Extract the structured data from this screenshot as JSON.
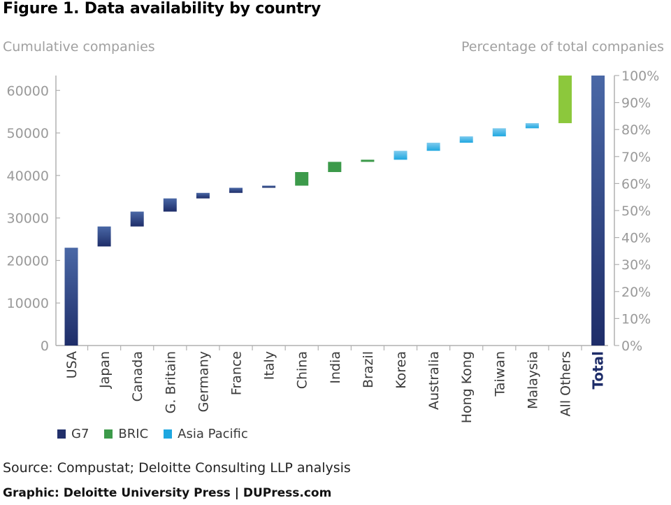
{
  "title": "Figure 1. Data availability by country",
  "source": "Source: Compustat; Deloitte Consulting LLP analysis",
  "credit": "Graphic: Deloitte University Press  |  DUPress.com",
  "colors": {
    "g7_top": "#4a68a6",
    "g7_bottom": "#1e2d69",
    "bric": "#3c9a4a",
    "asia_top": "#7fcbee",
    "asia_bottom": "#1ea7e0",
    "others": "#8cc83c",
    "axis": "#b0b0b0",
    "tick_text": "#9a9a9a"
  },
  "legend": [
    {
      "label": "G7",
      "color": "#22306b"
    },
    {
      "label": "BRIC",
      "color": "#3c9a4a"
    },
    {
      "label": "Asia Pacific",
      "color": "#1ea7e0"
    }
  ],
  "chart_data": {
    "type": "bar",
    "subtype": "waterfall",
    "title": "Figure 1. Data availability by country",
    "ylabel_left": "Cumulative companies",
    "ylabel_right": "Percentage of total companies",
    "ylim": [
      0,
      63500
    ],
    "y_ticks": [
      0,
      10000,
      20000,
      30000,
      40000,
      50000,
      60000
    ],
    "y_ticks_right": [
      "0%",
      "10%",
      "20%",
      "30%",
      "40%",
      "50%",
      "60%",
      "70%",
      "80%",
      "90%",
      "100%"
    ],
    "grid": false,
    "legend_position": "bottom-left",
    "categories": [
      "USA",
      "Japan",
      "Canada",
      "G. Britain",
      "Germany",
      "France",
      "Italy",
      "China",
      "India",
      "Brazil",
      "Korea",
      "Australia",
      "Hong Kong",
      "Taiwan",
      "Malaysia",
      "All Others",
      "Total"
    ],
    "bars": [
      {
        "category": "USA",
        "group": "G7",
        "start": 0,
        "end": 23000
      },
      {
        "category": "Japan",
        "group": "G7",
        "start": 23300,
        "end": 28000
      },
      {
        "category": "Canada",
        "group": "G7",
        "start": 28000,
        "end": 31500
      },
      {
        "category": "G. Britain",
        "group": "G7",
        "start": 31500,
        "end": 34600
      },
      {
        "category": "Germany",
        "group": "G7",
        "start": 34600,
        "end": 35900
      },
      {
        "category": "France",
        "group": "G7",
        "start": 35900,
        "end": 37100
      },
      {
        "category": "Italy",
        "group": "G7",
        "start": 37100,
        "end": 37600
      },
      {
        "category": "China",
        "group": "BRIC",
        "start": 37600,
        "end": 40800
      },
      {
        "category": "India",
        "group": "BRIC",
        "start": 40800,
        "end": 43200
      },
      {
        "category": "Brazil",
        "group": "BRIC",
        "start": 43200,
        "end": 43700
      },
      {
        "category": "Korea",
        "group": "Asia Pacific",
        "start": 43700,
        "end": 45800
      },
      {
        "category": "Australia",
        "group": "Asia Pacific",
        "start": 45800,
        "end": 47700
      },
      {
        "category": "Hong Kong",
        "group": "Asia Pacific",
        "start": 47700,
        "end": 49200
      },
      {
        "category": "Taiwan",
        "group": "Asia Pacific",
        "start": 49200,
        "end": 51100
      },
      {
        "category": "Malaysia",
        "group": "Asia Pacific",
        "start": 51100,
        "end": 52300
      },
      {
        "category": "All Others",
        "group": "Others",
        "start": 52300,
        "end": 63500
      },
      {
        "category": "Total",
        "group": "Total",
        "start": 0,
        "end": 63500
      }
    ]
  }
}
